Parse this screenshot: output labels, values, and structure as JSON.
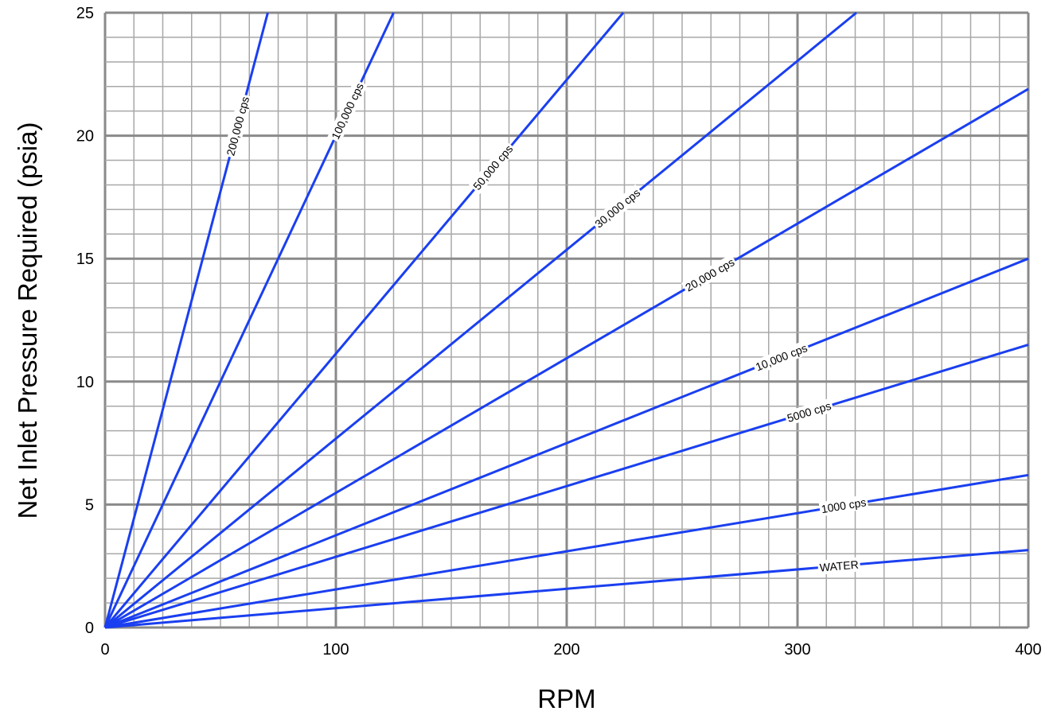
{
  "chart_data": {
    "type": "line",
    "title": "",
    "xlabel": "RPM",
    "ylabel": "Net Inlet Pressure Required (psia)",
    "xlim": [
      0,
      400
    ],
    "ylim": [
      0,
      25
    ],
    "x_ticks": [
      "0",
      "100",
      "200",
      "300",
      "400"
    ],
    "y_ticks": [
      "0",
      "5",
      "10",
      "15",
      "20",
      "25"
    ],
    "grid": true,
    "colors": {
      "line": "#1a3ff0",
      "grid_major": "#8a8a8a",
      "grid_minor": "#a8a8a8"
    },
    "series": [
      {
        "name": "200,000 cps",
        "x": [
          0,
          70.5
        ],
        "y": [
          0,
          25
        ]
      },
      {
        "name": "100,000 cps",
        "x": [
          0,
          125
        ],
        "y": [
          0,
          25
        ]
      },
      {
        "name": "50,000 cps",
        "x": [
          0,
          224.5
        ],
        "y": [
          0,
          25
        ]
      },
      {
        "name": "30,000 cps",
        "x": [
          0,
          325.5
        ],
        "y": [
          0,
          25
        ]
      },
      {
        "name": "20,000 cps",
        "x": [
          0,
          400
        ],
        "y": [
          0,
          21.9
        ]
      },
      {
        "name": "10,000 cps",
        "x": [
          0,
          400
        ],
        "y": [
          0,
          15.0
        ]
      },
      {
        "name": "5000 cps",
        "x": [
          0,
          400
        ],
        "y": [
          0,
          11.5
        ]
      },
      {
        "name": "1000 cps",
        "x": [
          0,
          400
        ],
        "y": [
          0,
          6.2
        ]
      },
      {
        "name": "WATER",
        "x": [
          0,
          400
        ],
        "y": [
          0,
          3.15
        ]
      }
    ],
    "curve_label_positions": [
      {
        "series": "200,000 cps",
        "x": 57.5
      },
      {
        "series": "100,000 cps",
        "x": 105
      },
      {
        "series": "50,000 cps",
        "x": 168
      },
      {
        "series": "30,000 cps",
        "x": 222
      },
      {
        "series": "20,000 cps",
        "x": 262
      },
      {
        "series": "10,000 cps",
        "x": 293
      },
      {
        "series": "5000 cps",
        "x": 305
      },
      {
        "series": "1000 cps",
        "x": 320
      },
      {
        "series": "WATER",
        "x": 318
      }
    ]
  }
}
